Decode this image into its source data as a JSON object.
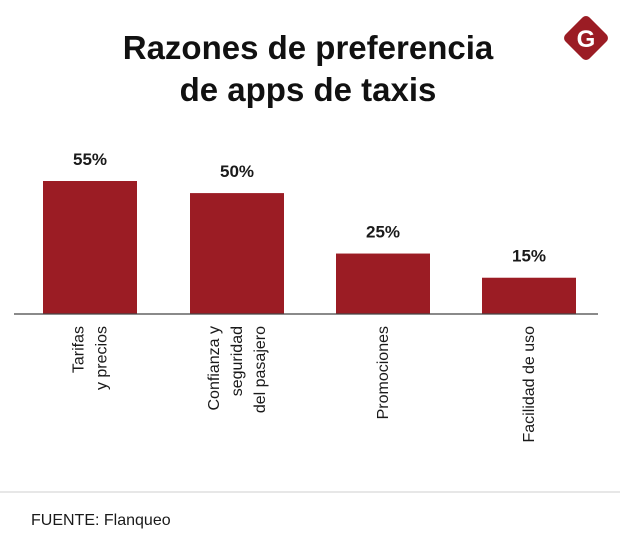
{
  "brand": {
    "logo_letter": "G",
    "accent_color": "#9b1c24"
  },
  "chart_data": {
    "type": "bar",
    "title": "Razones de preferencia de apps de taxis",
    "title_lines": [
      "Razones de preferencia",
      "de apps  de taxis"
    ],
    "categories": [
      [
        "Tarifas",
        "y precios"
      ],
      [
        "Confianza y",
        "seguridad",
        "del pasajero"
      ],
      [
        "Promociones"
      ],
      [
        "Facilidad de uso"
      ]
    ],
    "values": [
      55,
      50,
      25,
      15
    ],
    "value_labels": [
      "55%",
      "50%",
      "25%",
      "15%"
    ],
    "ylim": [
      0,
      55
    ],
    "xlabel": "",
    "ylabel": "",
    "grid": false,
    "bar_color": "#9b1c24"
  },
  "source": "FUENTE: Flanqueo"
}
